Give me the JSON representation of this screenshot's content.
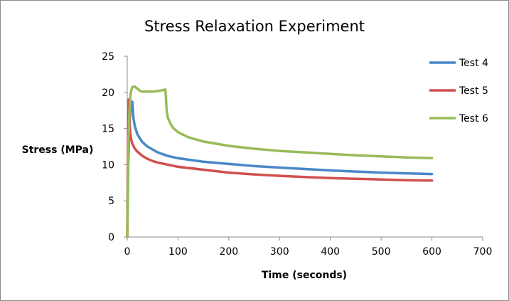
{
  "chart_data": {
    "type": "line",
    "title": "Stress Relaxation Experiment",
    "xlabel": "Time (seconds)",
    "ylabel": "Stress (MPa)",
    "xlim": [
      0,
      700
    ],
    "ylim": [
      0,
      25
    ],
    "xticks": [
      0,
      100,
      200,
      300,
      400,
      500,
      600,
      700
    ],
    "yticks": [
      0,
      5,
      10,
      15,
      20,
      25
    ],
    "grid": false,
    "legend_position": "right",
    "series": [
      {
        "name": "Test 4",
        "color": "#4a88c7",
        "x": [
          0,
          2,
          4,
          6,
          8,
          10,
          12,
          15,
          20,
          25,
          30,
          40,
          50,
          60,
          80,
          100,
          150,
          200,
          250,
          300,
          350,
          400,
          450,
          500,
          550,
          600
        ],
        "y": [
          0,
          10,
          15,
          17.5,
          18.5,
          18.7,
          16.5,
          15.3,
          14.2,
          13.6,
          13.1,
          12.5,
          12.1,
          11.7,
          11.2,
          10.9,
          10.4,
          10.1,
          9.8,
          9.6,
          9.4,
          9.2,
          9.05,
          8.9,
          8.8,
          8.7
        ]
      },
      {
        "name": "Test 5",
        "color": "#d0504e",
        "x": [
          0,
          1,
          2,
          3,
          4,
          5,
          7,
          10,
          15,
          20,
          25,
          30,
          40,
          50,
          60,
          80,
          100,
          150,
          200,
          250,
          300,
          350,
          400,
          450,
          500,
          550,
          600
        ],
        "y": [
          0,
          10,
          17,
          19,
          18,
          15,
          13.7,
          12.9,
          12.2,
          11.8,
          11.5,
          11.2,
          10.8,
          10.5,
          10.3,
          10,
          9.7,
          9.3,
          8.9,
          8.65,
          8.45,
          8.3,
          8.15,
          8.05,
          7.95,
          7.85,
          7.8
        ]
      },
      {
        "name": "Test 6",
        "color": "#98bb59",
        "x": [
          0,
          2,
          4,
          5,
          6,
          8,
          10,
          12,
          15,
          18,
          22,
          25,
          30,
          40,
          50,
          60,
          70,
          75,
          76,
          77,
          78,
          80,
          85,
          90,
          100,
          120,
          150,
          200,
          250,
          300,
          350,
          400,
          450,
          500,
          550,
          600
        ],
        "y": [
          0,
          12,
          17,
          18,
          19.5,
          20.3,
          20.7,
          20.8,
          20.8,
          20.6,
          20.4,
          20.2,
          20.1,
          20.1,
          20.1,
          20.2,
          20.3,
          20.4,
          19.5,
          18.2,
          17.3,
          16.5,
          15.7,
          15.1,
          14.5,
          13.8,
          13.2,
          12.6,
          12.2,
          11.9,
          11.7,
          11.5,
          11.3,
          11.15,
          11,
          10.9
        ]
      }
    ]
  }
}
